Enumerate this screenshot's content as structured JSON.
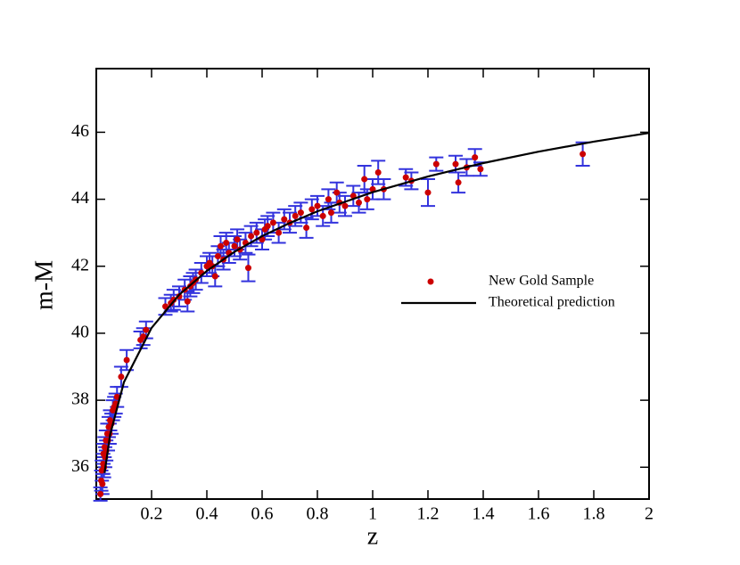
{
  "chart_data": {
    "type": "scatter",
    "x_label": "z",
    "y_label": "m-M",
    "xlim": [
      0,
      2
    ],
    "ylim": [
      35.05,
      47.9
    ],
    "xticks": [
      0.2,
      0.4,
      0.6,
      0.8,
      1,
      1.2,
      1.4,
      1.6,
      1.8,
      2
    ],
    "yticks": [
      36,
      38,
      40,
      42,
      44,
      46
    ],
    "legend": "center right",
    "series": [
      {
        "name": "New Gold Sample",
        "type": "scatter",
        "color": "#cc0000",
        "error_color": "#3333dd",
        "x": [
          0.015,
          0.018,
          0.02,
          0.022,
          0.025,
          0.026,
          0.028,
          0.03,
          0.032,
          0.035,
          0.036,
          0.04,
          0.042,
          0.045,
          0.048,
          0.05,
          0.055,
          0.06,
          0.065,
          0.07,
          0.075,
          0.09,
          0.11,
          0.16,
          0.17,
          0.18,
          0.25,
          0.27,
          0.28,
          0.3,
          0.32,
          0.33,
          0.34,
          0.35,
          0.36,
          0.38,
          0.4,
          0.41,
          0.42,
          0.43,
          0.44,
          0.45,
          0.46,
          0.47,
          0.48,
          0.5,
          0.51,
          0.52,
          0.54,
          0.55,
          0.56,
          0.58,
          0.6,
          0.61,
          0.62,
          0.64,
          0.66,
          0.68,
          0.7,
          0.72,
          0.74,
          0.76,
          0.78,
          0.8,
          0.82,
          0.84,
          0.85,
          0.87,
          0.88,
          0.9,
          0.93,
          0.95,
          0.97,
          0.98,
          1.0,
          1.02,
          1.04,
          1.12,
          1.14,
          1.2,
          1.23,
          1.3,
          1.31,
          1.34,
          1.37,
          1.39,
          1.76
        ],
        "values": [
          35.2,
          35.6,
          35.9,
          35.5,
          36.1,
          36.4,
          36.0,
          36.6,
          36.3,
          36.8,
          36.5,
          37.0,
          36.8,
          37.2,
          37.0,
          37.4,
          37.3,
          37.7,
          37.8,
          37.9,
          38.1,
          38.7,
          39.2,
          39.8,
          39.9,
          40.1,
          40.8,
          40.9,
          41.0,
          41.1,
          41.3,
          40.95,
          41.4,
          41.5,
          41.6,
          41.8,
          42.0,
          42.1,
          42.0,
          41.7,
          42.3,
          42.6,
          42.2,
          42.7,
          42.4,
          42.6,
          42.8,
          42.5,
          42.7,
          41.95,
          42.9,
          43.0,
          42.8,
          43.1,
          43.2,
          43.3,
          43.0,
          43.4,
          43.3,
          43.5,
          43.6,
          43.15,
          43.7,
          43.8,
          43.5,
          44.0,
          43.6,
          44.2,
          43.9,
          43.8,
          44.1,
          43.9,
          44.6,
          44.0,
          44.3,
          44.8,
          44.3,
          44.65,
          44.55,
          44.2,
          45.05,
          45.05,
          44.5,
          44.95,
          45.25,
          44.9,
          45.35
        ],
        "errors": [
          0.2,
          0.3,
          0.3,
          0.3,
          0.3,
          0.3,
          0.3,
          0.3,
          0.3,
          0.3,
          0.3,
          0.3,
          0.3,
          0.3,
          0.3,
          0.3,
          0.3,
          0.3,
          0.3,
          0.3,
          0.3,
          0.3,
          0.3,
          0.25,
          0.25,
          0.25,
          0.25,
          0.25,
          0.3,
          0.3,
          0.3,
          0.3,
          0.3,
          0.3,
          0.3,
          0.3,
          0.3,
          0.3,
          0.3,
          0.3,
          0.3,
          0.3,
          0.3,
          0.3,
          0.3,
          0.3,
          0.3,
          0.3,
          0.3,
          0.4,
          0.3,
          0.3,
          0.3,
          0.3,
          0.3,
          0.3,
          0.3,
          0.3,
          0.3,
          0.3,
          0.3,
          0.3,
          0.3,
          0.3,
          0.3,
          0.3,
          0.3,
          0.3,
          0.3,
          0.3,
          0.3,
          0.3,
          0.4,
          0.3,
          0.3,
          0.35,
          0.3,
          0.25,
          0.25,
          0.4,
          0.2,
          0.25,
          0.3,
          0.25,
          0.25,
          0.2,
          0.35
        ]
      },
      {
        "name": "Theoretical prediction",
        "type": "line",
        "color": "#000000",
        "x": [
          0.03,
          0.05,
          0.1,
          0.2,
          0.3,
          0.4,
          0.5,
          0.6,
          0.7,
          0.8,
          1,
          1.2,
          1.4,
          1.6,
          1.8,
          2
        ],
        "values": [
          35.83,
          36.97,
          38.54,
          40.16,
          41.15,
          41.86,
          42.43,
          42.9,
          43.29,
          43.64,
          44.21,
          44.68,
          45.08,
          45.42,
          45.72,
          45.98
        ]
      }
    ]
  }
}
